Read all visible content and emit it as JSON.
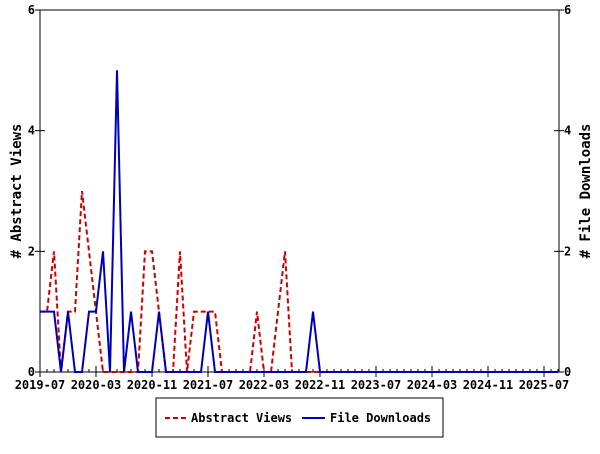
{
  "chart_data": {
    "type": "line",
    "title": "",
    "xlabel": "",
    "ylabel_left": "# Abstract Views",
    "ylabel_right": "# File Downloads",
    "ylim": [
      0,
      6
    ],
    "yticks": [
      "0",
      "2",
      "4",
      "6"
    ],
    "start_month": "2019-07",
    "xtick_labels": [
      "2019-07",
      "2020-03",
      "2020-11",
      "2021-07",
      "2022-03",
      "2022-11",
      "2023-07",
      "2024-03",
      "2024-11",
      "2025-07"
    ],
    "xtick_step_months": 8,
    "legend_position": "bottom",
    "series": [
      {
        "name": "Abstract Views",
        "color": "#cc0000",
        "style": "dashed",
        "values": [
          1,
          1,
          2,
          0,
          1,
          1,
          3,
          2,
          1,
          0,
          0,
          0,
          0,
          0,
          0,
          2,
          2,
          1,
          0,
          0,
          2,
          0,
          1,
          1,
          1,
          1,
          0,
          0,
          0,
          0,
          0,
          1,
          0,
          0,
          1,
          2,
          0,
          0,
          0,
          0,
          0,
          0,
          0,
          0,
          0,
          0,
          0,
          0,
          0,
          0,
          0,
          0,
          0,
          0,
          0,
          0,
          0,
          0,
          0,
          0,
          0,
          0,
          0,
          0,
          0,
          0,
          0,
          0,
          0,
          0,
          0,
          0,
          0,
          0,
          0
        ]
      },
      {
        "name": "File Downloads",
        "color": "#0000bb",
        "style": "solid",
        "values": [
          1,
          1,
          1,
          0,
          1,
          0,
          0,
          1,
          1,
          2,
          0,
          5,
          0,
          1,
          0,
          0,
          0,
          1,
          0,
          0,
          0,
          0,
          0,
          0,
          1,
          0,
          0,
          0,
          0,
          0,
          0,
          0,
          0,
          0,
          0,
          0,
          0,
          0,
          0,
          1,
          0,
          0,
          0,
          0,
          0,
          0,
          0,
          0,
          0,
          0,
          0,
          0,
          0,
          0,
          0,
          0,
          0,
          0,
          0,
          0,
          0,
          0,
          0,
          0,
          0,
          0,
          0,
          0,
          0,
          0,
          0,
          0,
          0,
          0,
          0
        ]
      }
    ]
  }
}
